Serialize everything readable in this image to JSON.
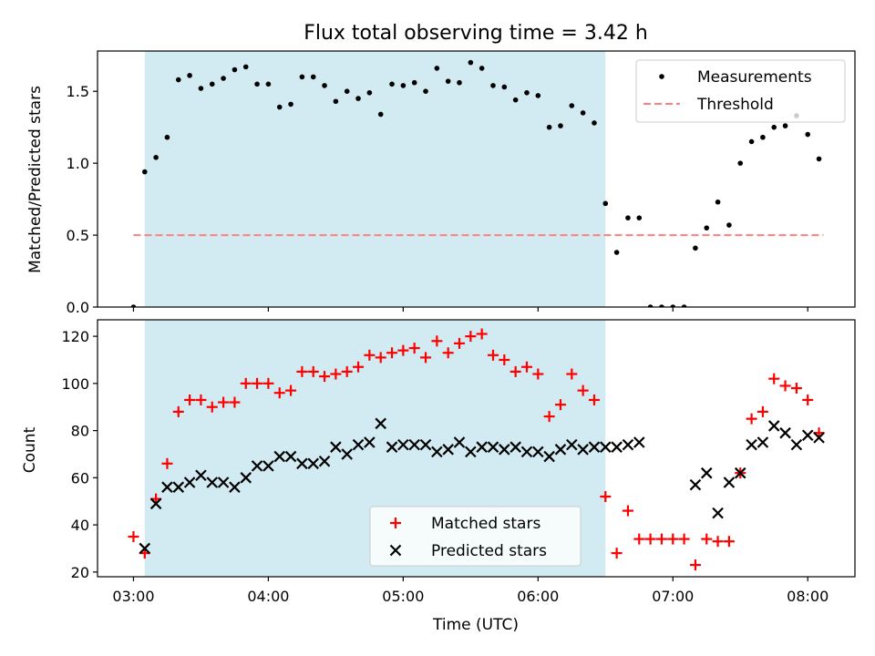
{
  "title": "Flux total observing time = 3.42 h",
  "colors": {
    "shade": "#add8e6",
    "measure": "#000000",
    "threshold": "#ff7f7f",
    "matched": "#ff0000",
    "predicted": "#000000"
  },
  "chart_data": [
    {
      "type": "scatter",
      "ylabel": "Matched/Predicted stars",
      "ylim": [
        0,
        1.78
      ],
      "yticks": [
        0,
        0.5,
        1.0,
        1.5
      ],
      "ytick_labels": [
        "0.0",
        "0.5",
        "1.0",
        "1.5"
      ],
      "xlim": [
        "02:44",
        "08:21"
      ],
      "xticks": [
        "03:00",
        "04:00",
        "05:00",
        "06:00",
        "07:00",
        "08:00"
      ],
      "shaded_interval": [
        "03:05",
        "06:30"
      ],
      "legend": {
        "placement": "upper right",
        "entries": [
          "Measurements",
          "Threshold"
        ]
      },
      "threshold": {
        "name": "Threshold",
        "value": 0.5,
        "x_range": [
          "03:00",
          "08:07"
        ]
      },
      "series": [
        {
          "name": "Measurements",
          "marker": "dot",
          "x": [
            "03:00",
            "03:05",
            "03:10",
            "03:15",
            "03:20",
            "03:25",
            "03:30",
            "03:35",
            "03:40",
            "03:45",
            "03:50",
            "03:55",
            "04:00",
            "04:05",
            "04:10",
            "04:15",
            "04:20",
            "04:25",
            "04:30",
            "04:35",
            "04:40",
            "04:45",
            "04:50",
            "04:55",
            "05:00",
            "05:05",
            "05:10",
            "05:15",
            "05:20",
            "05:25",
            "05:30",
            "05:35",
            "05:40",
            "05:45",
            "05:50",
            "05:55",
            "06:00",
            "06:05",
            "06:10",
            "06:15",
            "06:20",
            "06:25",
            "06:30",
            "06:35",
            "06:40",
            "06:45",
            "06:50",
            "06:55",
            "07:00",
            "07:05",
            "07:10",
            "07:15",
            "07:20",
            "07:25",
            "07:30",
            "07:35",
            "07:40",
            "07:45",
            "07:50",
            "07:55",
            "08:00",
            "08:05"
          ],
          "y": [
            0.0,
            0.94,
            1.04,
            1.18,
            1.58,
            1.61,
            1.52,
            1.55,
            1.59,
            1.65,
            1.67,
            1.55,
            1.55,
            1.39,
            1.41,
            1.6,
            1.6,
            1.54,
            1.43,
            1.5,
            1.45,
            1.49,
            1.34,
            1.55,
            1.54,
            1.56,
            1.5,
            1.66,
            1.57,
            1.56,
            1.7,
            1.66,
            1.54,
            1.53,
            1.44,
            1.49,
            1.47,
            1.25,
            1.26,
            1.4,
            1.35,
            1.28,
            0.72,
            0.38,
            0.62,
            0.62,
            0.0,
            0.0,
            0.0,
            0.0,
            0.41,
            0.55,
            0.73,
            0.57,
            1.0,
            1.15,
            1.18,
            1.25,
            1.26,
            1.33,
            1.2,
            1.03
          ]
        }
      ]
    },
    {
      "type": "scatter",
      "ylabel": "Count",
      "xlabel": "Time (UTC)",
      "ylim": [
        18,
        127
      ],
      "yticks": [
        20,
        40,
        60,
        80,
        100,
        120
      ],
      "xlim": [
        "02:44",
        "08:21"
      ],
      "xticks": [
        "03:00",
        "04:00",
        "05:00",
        "06:00",
        "07:00",
        "08:00"
      ],
      "shaded_interval": [
        "03:05",
        "06:30"
      ],
      "legend": {
        "placement": "lower center",
        "entries": [
          "Matched stars",
          "Predicted stars"
        ]
      },
      "series": [
        {
          "name": "Matched stars",
          "marker": "plus",
          "x": [
            "03:00",
            "03:05",
            "03:10",
            "03:15",
            "03:20",
            "03:25",
            "03:30",
            "03:35",
            "03:40",
            "03:45",
            "03:50",
            "03:55",
            "04:00",
            "04:05",
            "04:10",
            "04:15",
            "04:20",
            "04:25",
            "04:30",
            "04:35",
            "04:40",
            "04:45",
            "04:50",
            "04:55",
            "05:00",
            "05:05",
            "05:10",
            "05:15",
            "05:20",
            "05:25",
            "05:30",
            "05:35",
            "05:40",
            "05:45",
            "05:50",
            "05:55",
            "06:00",
            "06:05",
            "06:10",
            "06:15",
            "06:20",
            "06:25",
            "06:30",
            "06:35",
            "06:40",
            "06:45",
            "06:50",
            "06:55",
            "07:00",
            "07:05",
            "07:10",
            "07:15",
            "07:20",
            "07:25",
            "07:30",
            "07:35",
            "07:40",
            "07:45",
            "07:50",
            "07:55",
            "08:00",
            "08:05"
          ],
          "y": [
            35,
            28,
            51,
            66,
            88,
            93,
            93,
            90,
            92,
            92,
            100,
            100,
            100,
            96,
            97,
            105,
            105,
            103,
            104,
            105,
            107,
            112,
            111,
            113,
            114,
            115,
            111,
            118,
            113,
            117,
            120,
            121,
            112,
            110,
            105,
            107,
            104,
            86,
            91,
            104,
            97,
            93,
            52,
            28,
            46,
            34,
            34,
            34,
            34,
            34,
            23,
            34,
            33,
            33,
            62,
            85,
            88,
            102,
            99,
            98,
            93,
            79
          ]
        },
        {
          "name": "Predicted stars",
          "marker": "x",
          "x": [
            "03:05",
            "03:10",
            "03:15",
            "03:20",
            "03:25",
            "03:30",
            "03:35",
            "03:40",
            "03:45",
            "03:50",
            "03:55",
            "04:00",
            "04:05",
            "04:10",
            "04:15",
            "04:20",
            "04:25",
            "04:30",
            "04:35",
            "04:40",
            "04:45",
            "04:50",
            "04:55",
            "05:00",
            "05:05",
            "05:10",
            "05:15",
            "05:20",
            "05:25",
            "05:30",
            "05:35",
            "05:40",
            "05:45",
            "05:50",
            "05:55",
            "06:00",
            "06:05",
            "06:10",
            "06:15",
            "06:20",
            "06:25",
            "06:30",
            "06:35",
            "06:40",
            "06:45",
            "07:10",
            "07:15",
            "07:20",
            "07:25",
            "07:30",
            "07:35",
            "07:40",
            "07:45",
            "07:50",
            "07:55",
            "08:00",
            "08:05"
          ],
          "y": [
            30,
            49,
            56,
            56,
            58,
            61,
            58,
            58,
            56,
            60,
            65,
            65,
            69,
            69,
            66,
            66,
            67,
            73,
            70,
            74,
            75,
            83,
            73,
            74,
            74,
            74,
            71,
            72,
            75,
            71,
            73,
            73,
            72,
            73,
            71,
            71,
            69,
            72,
            74,
            72,
            73,
            73,
            73,
            74,
            75,
            57,
            62,
            45,
            58,
            62,
            74,
            75,
            82,
            79,
            74,
            78,
            77
          ]
        }
      ]
    }
  ]
}
